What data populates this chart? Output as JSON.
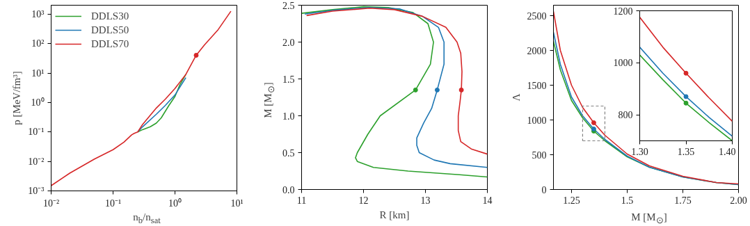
{
  "chart_data": [
    {
      "type": "line",
      "log": "xy",
      "xlabel": "n$_{b}$/n$_{sat}$",
      "ylabel": "p [MeV/fm³]",
      "xlim": [
        0.01,
        10
      ],
      "ylim": [
        0.001,
        2000
      ],
      "xticks": [
        {
          "value": 0.01,
          "label": "10⁻²"
        },
        {
          "value": 0.1,
          "label": "10⁻¹"
        },
        {
          "value": 1,
          "label": "10⁰"
        },
        {
          "value": 10,
          "label": "10¹"
        }
      ],
      "yticks": [
        {
          "value": 0.001,
          "label": "10⁻³"
        },
        {
          "value": 0.01,
          "label": "10⁻²"
        },
        {
          "value": 0.1,
          "label": "10⁻¹"
        },
        {
          "value": 1,
          "label": "10⁰"
        },
        {
          "value": 10,
          "label": "10¹"
        },
        {
          "value": 100,
          "label": "10²"
        },
        {
          "value": 1000,
          "label": "10³"
        }
      ],
      "legend": "top left",
      "series": [
        {
          "name": "DDLS30",
          "color": "#2ca02c",
          "x": [
            0.25,
            0.3,
            0.4,
            0.5,
            0.6,
            0.8,
            1.0,
            1.2,
            1.5
          ],
          "values": [
            0.1,
            0.12,
            0.15,
            0.2,
            0.3,
            0.8,
            1.6,
            4,
            9
          ]
        },
        {
          "name": "DDLS50",
          "color": "#1f77b4",
          "x": [
            0.25,
            0.3,
            0.5,
            0.7,
            1.0,
            1.5
          ],
          "values": [
            0.1,
            0.15,
            0.4,
            0.8,
            1.8,
            7
          ]
        },
        {
          "name": "DDLS70",
          "color": "#d62728",
          "x": [
            0.01,
            0.02,
            0.05,
            0.1,
            0.15,
            0.2,
            0.22,
            0.25,
            0.3,
            0.5,
            0.7,
            1.0,
            1.5,
            2.2,
            3,
            5,
            8
          ],
          "values": [
            0.0015,
            0.004,
            0.012,
            0.025,
            0.045,
            0.08,
            0.09,
            0.1,
            0.18,
            0.65,
            1.3,
            3,
            9,
            40,
            90,
            300,
            1250
          ]
        },
        {
          "type": "scatter",
          "color": "#d62728",
          "x": [
            2.2
          ],
          "values": [
            40
          ]
        }
      ]
    },
    {
      "type": "line",
      "xlabel": "R [km]",
      "ylabel": "M [M$_{⊙}$]",
      "xlim": [
        11,
        14
      ],
      "ylim": [
        0,
        2.5
      ],
      "xticks": [
        11,
        12,
        13,
        14
      ],
      "yticks": [
        {
          "value": 0,
          "label": "0.0"
        },
        0.5,
        {
          "value": 1,
          "label": "1.0"
        },
        1.5,
        {
          "value": 2,
          "label": "2.0"
        },
        2.5
      ],
      "series": [
        {
          "color": "#2ca02c",
          "x": [
            14,
            13.55,
            12.72,
            12.16,
            11.9,
            11.87,
            11.9,
            12.07,
            12.27,
            12.84,
            13.08,
            13.13,
            13.04,
            12.8,
            12.4,
            12.0,
            11.5,
            11.0
          ],
          "values": [
            0.17,
            0.2,
            0.25,
            0.3,
            0.38,
            0.43,
            0.5,
            0.75,
            1.0,
            1.35,
            1.7,
            2.0,
            2.25,
            2.4,
            2.47,
            2.48,
            2.44,
            2.39
          ]
        },
        {
          "color": "#1f77b4",
          "x": [
            14,
            13.4,
            13.14,
            12.9,
            12.86,
            12.86,
            12.97,
            13.1,
            13.19,
            13.3,
            13.3,
            13.21,
            12.95,
            12.58,
            12.1,
            11.5,
            11.05
          ],
          "values": [
            0.3,
            0.35,
            0.4,
            0.5,
            0.6,
            0.7,
            0.9,
            1.1,
            1.35,
            1.7,
            2.0,
            2.2,
            2.35,
            2.45,
            2.47,
            2.43,
            2.38
          ]
        },
        {
          "color": "#d62728",
          "x": [
            14,
            13.74,
            13.57,
            13.53,
            13.53,
            13.56,
            13.58,
            13.59,
            13.57,
            13.51,
            13.33,
            12.95,
            12.5,
            12.1,
            11.5,
            11.08
          ],
          "values": [
            0.48,
            0.55,
            0.65,
            0.8,
            1.0,
            1.2,
            1.35,
            1.6,
            1.85,
            2.0,
            2.2,
            2.35,
            2.44,
            2.46,
            2.42,
            2.36
          ]
        },
        {
          "type": "scatter",
          "color": "#2ca02c",
          "x": [
            12.84
          ],
          "values": [
            1.35
          ]
        },
        {
          "type": "scatter",
          "color": "#1f77b4",
          "x": [
            13.19
          ],
          "values": [
            1.35
          ]
        },
        {
          "type": "scatter",
          "color": "#d62728",
          "x": [
            13.58
          ],
          "values": [
            1.35
          ]
        }
      ]
    },
    {
      "type": "line",
      "xlabel": "M [M$_{⊙}$]",
      "ylabel": "Λ",
      "xlim": [
        1.169,
        2.0
      ],
      "ylim": [
        0,
        2650
      ],
      "xticks": [
        1.25,
        1.5,
        1.75,
        {
          "value": 2,
          "label": "2.00"
        }
      ],
      "yticks": [
        0,
        500,
        1000,
        1500,
        2000,
        2500
      ],
      "series": [
        {
          "color": "#2ca02c",
          "x": [
            1.169,
            1.2,
            1.25,
            1.3,
            1.35,
            1.4,
            1.5,
            1.6,
            1.75,
            1.9,
            2.0
          ],
          "values": [
            2130,
            1720,
            1280,
            1030,
            840,
            700,
            470,
            320,
            180,
            100,
            70
          ]
        },
        {
          "color": "#1f77b4",
          "x": [
            1.169,
            1.2,
            1.25,
            1.3,
            1.35,
            1.4,
            1.5,
            1.6,
            1.75,
            1.9,
            2.0
          ],
          "values": [
            2260,
            1800,
            1330,
            1060,
            870,
            720,
            480,
            320,
            180,
            100,
            70
          ]
        },
        {
          "color": "#d62728",
          "x": [
            1.169,
            1.2,
            1.25,
            1.3,
            1.35,
            1.4,
            1.5,
            1.6,
            1.75,
            1.9,
            2.0
          ],
          "values": [
            2560,
            2000,
            1500,
            1180,
            960,
            780,
            510,
            340,
            190,
            100,
            80
          ]
        },
        {
          "type": "scatter",
          "color": "#2ca02c",
          "x": [
            1.35
          ],
          "values": [
            840
          ]
        },
        {
          "type": "scatter",
          "color": "#1f77b4",
          "x": [
            1.35
          ],
          "values": [
            870
          ]
        },
        {
          "type": "scatter",
          "color": "#d62728",
          "x": [
            1.35
          ],
          "values": [
            960
          ]
        }
      ]
    },
    {
      "type": "line",
      "xlim": [
        1.3,
        1.4
      ],
      "ylim": [
        700,
        1200
      ],
      "xticks": [
        {
          "value": 1.3,
          "label": "1.30"
        },
        1.35,
        {
          "value": 1.4,
          "label": "1.40"
        }
      ],
      "yticks": [
        800,
        1000,
        1200
      ],
      "series": [
        {
          "color": "#2ca02c",
          "x": [
            1.3,
            1.325,
            1.35,
            1.375,
            1.4
          ],
          "values": [
            1030,
            935,
            845,
            770,
            700
          ]
        },
        {
          "color": "#1f77b4",
          "x": [
            1.3,
            1.325,
            1.35,
            1.375,
            1.4
          ],
          "values": [
            1060,
            960,
            870,
            790,
            718
          ]
        },
        {
          "color": "#d62728",
          "x": [
            1.3,
            1.325,
            1.35,
            1.375,
            1.4
          ],
          "values": [
            1175,
            1060,
            960,
            865,
            775
          ]
        },
        {
          "type": "scatter",
          "color": "#2ca02c",
          "x": [
            1.35
          ],
          "values": [
            845
          ]
        },
        {
          "type": "scatter",
          "color": "#1f77b4",
          "x": [
            1.35
          ],
          "values": [
            870
          ]
        },
        {
          "type": "scatter",
          "color": "#d62728",
          "x": [
            1.35
          ],
          "values": [
            960
          ]
        }
      ]
    }
  ]
}
